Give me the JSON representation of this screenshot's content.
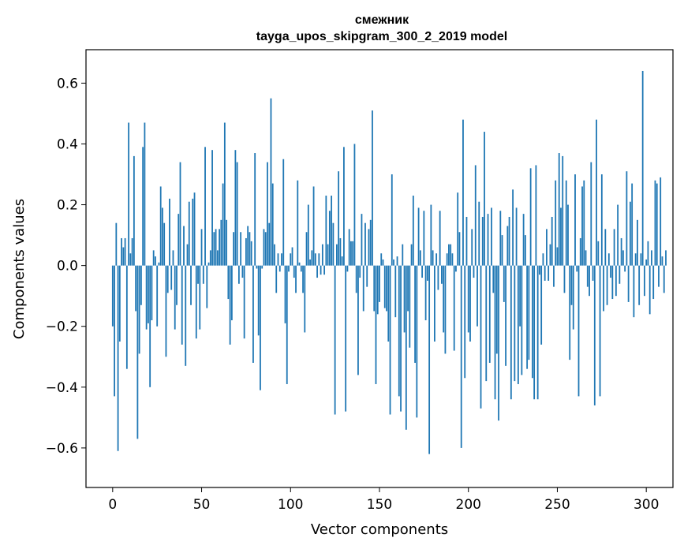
{
  "chart_data": {
    "type": "bar",
    "title": "смежник",
    "subtitle": "tayga_upos_skipgram_300_2_2019 model",
    "xlabel": "Vector components",
    "ylabel": "Components values",
    "xlim": [
      -15,
      315
    ],
    "ylim": [
      -0.73,
      0.71
    ],
    "xticks": [
      0,
      50,
      100,
      150,
      200,
      250,
      300
    ],
    "xtick_labels": [
      "0",
      "50",
      "100",
      "150",
      "200",
      "250",
      "300"
    ],
    "yticks": [
      -0.6,
      -0.4,
      -0.2,
      0.0,
      0.2,
      0.4,
      0.6
    ],
    "ytick_labels": [
      "−0.6",
      "−0.4",
      "−0.2",
      "0.0",
      "0.2",
      "0.4",
      "0.6"
    ],
    "grid": false,
    "bar_color": "#1f77b4",
    "x_start": 0,
    "values": [
      -0.2,
      -0.43,
      0.14,
      -0.61,
      -0.25,
      0.09,
      0.06,
      0.09,
      -0.34,
      0.47,
      0.04,
      0.09,
      0.36,
      -0.15,
      -0.57,
      -0.29,
      -0.13,
      0.39,
      0.47,
      -0.21,
      -0.19,
      -0.4,
      -0.18,
      0.05,
      0.03,
      -0.2,
      0.01,
      0.26,
      0.19,
      0.14,
      -0.3,
      -0.09,
      0.22,
      -0.08,
      0.05,
      -0.21,
      -0.13,
      0.17,
      0.34,
      -0.26,
      0.13,
      -0.33,
      0.07,
      0.21,
      -0.13,
      0.22,
      0.24,
      -0.24,
      -0.06,
      -0.21,
      0.12,
      -0.06,
      0.39,
      -0.14,
      0.01,
      0.05,
      0.38,
      0.11,
      0.12,
      0.05,
      0.12,
      0.15,
      0.27,
      0.47,
      0.15,
      -0.11,
      -0.26,
      -0.18,
      0.11,
      0.38,
      0.34,
      -0.06,
      0.11,
      -0.04,
      -0.24,
      0.09,
      0.13,
      0.11,
      0.08,
      -0.32,
      0.37,
      -0.01,
      -0.23,
      -0.41,
      -0.01,
      0.12,
      0.11,
      0.34,
      0.14,
      0.55,
      0.27,
      0.07,
      -0.09,
      0.04,
      -0.02,
      0.04,
      0.35,
      -0.19,
      -0.39,
      -0.02,
      0.04,
      0.06,
      -0.04,
      -0.09,
      0.28,
      0.01,
      -0.02,
      -0.09,
      -0.22,
      0.11,
      0.2,
      0.02,
      0.05,
      0.26,
      0.04,
      -0.04,
      0.04,
      -0.03,
      0.07,
      -0.03,
      0.23,
      0.07,
      0.18,
      0.23,
      0.14,
      -0.49,
      0.07,
      0.31,
      0.09,
      0.03,
      0.39,
      -0.48,
      -0.02,
      0.12,
      0.08,
      0.08,
      0.4,
      -0.09,
      -0.36,
      -0.04,
      0.17,
      -0.15,
      0.14,
      -0.07,
      0.12,
      0.15,
      0.51,
      -0.15,
      -0.39,
      -0.16,
      -0.12,
      0.04,
      0.02,
      -0.14,
      -0.15,
      -0.25,
      -0.49,
      0.3,
      0.02,
      -0.17,
      0.03,
      -0.43,
      -0.48,
      0.07,
      -0.22,
      -0.54,
      -0.15,
      -0.27,
      0.07,
      0.23,
      -0.32,
      -0.5,
      0.19,
      0.05,
      -0.04,
      0.18,
      -0.18,
      -0.05,
      -0.62,
      0.2,
      0.05,
      -0.25,
      0.04,
      -0.08,
      0.18,
      -0.06,
      -0.22,
      -0.29,
      0.04,
      0.07,
      0.07,
      0.04,
      -0.28,
      -0.02,
      0.24,
      0.11,
      -0.6,
      0.48,
      -0.37,
      0.16,
      -0.22,
      -0.25,
      0.12,
      -0.04,
      0.33,
      -0.2,
      0.21,
      -0.47,
      0.16,
      0.44,
      -0.38,
      0.17,
      -0.32,
      0.19,
      -0.09,
      -0.44,
      -0.29,
      -0.51,
      0.18,
      0.1,
      -0.12,
      -0.33,
      0.13,
      0.16,
      -0.44,
      0.25,
      -0.38,
      0.19,
      -0.39,
      -0.2,
      -0.36,
      0.17,
      0.1,
      -0.34,
      -0.31,
      0.32,
      -0.37,
      -0.44,
      0.33,
      -0.44,
      -0.03,
      -0.26,
      0.04,
      -0.05,
      0.12,
      -0.05,
      0.07,
      0.16,
      -0.07,
      0.28,
      0.06,
      0.37,
      0.19,
      0.36,
      -0.09,
      0.28,
      0.2,
      -0.31,
      -0.13,
      -0.21,
      0.3,
      -0.02,
      -0.43,
      0.09,
      0.26,
      0.28,
      0.05,
      -0.07,
      -0.1,
      0.34,
      -0.05,
      -0.46,
      0.48,
      0.08,
      -0.43,
      0.3,
      -0.15,
      0.12,
      -0.13,
      0.04,
      -0.04,
      -0.11,
      0.12,
      -0.1,
      0.2,
      -0.06,
      0.09,
      0.05,
      -0.02,
      0.31,
      -0.12,
      0.21,
      0.27,
      -0.17,
      0.04,
      0.15,
      -0.13,
      0.04,
      0.64,
      -0.1,
      0.02,
      0.08,
      -0.16,
      0.05,
      -0.11,
      0.28,
      0.27,
      -0.07,
      0.29,
      0.03,
      -0.09,
      0.05
    ]
  }
}
